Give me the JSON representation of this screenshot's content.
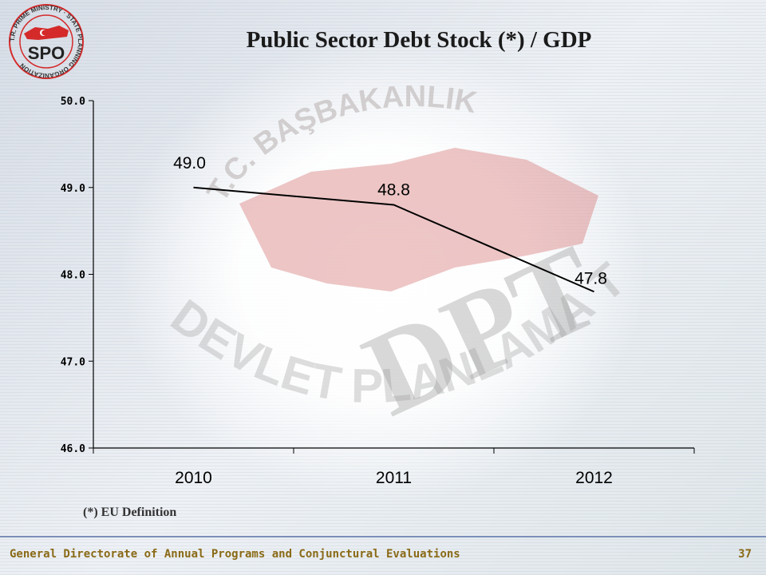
{
  "logo": {
    "text": "SPO",
    "ring_text": "T.R. PRIME MINISTRY · STATE PLANNING ORGANIZATION",
    "color": "#d42a2a"
  },
  "watermark": {
    "top_text": "T.C. BAŞBAKANLIK",
    "center_text": "DPT",
    "bottom_text": "DEVLET PLANLAMA TEŞKİLATI"
  },
  "chart_data": {
    "type": "line",
    "title": "Public Sector Debt Stock (*) / GDP",
    "categories": [
      "2010",
      "2011",
      "2012"
    ],
    "values": [
      49.0,
      48.8,
      47.8
    ],
    "data_labels": [
      "49.0",
      "48.8",
      "47.8"
    ],
    "y_ticks": [
      "46.0",
      "47.0",
      "48.0",
      "49.0",
      "50.0"
    ],
    "ylim": [
      46.0,
      50.0
    ],
    "grid": false,
    "line_color": "#000000"
  },
  "footnote": "(*) EU Definition",
  "footer": {
    "text": "General Directorate of Annual Programs and Conjunctural Evaluations",
    "page": "37"
  }
}
